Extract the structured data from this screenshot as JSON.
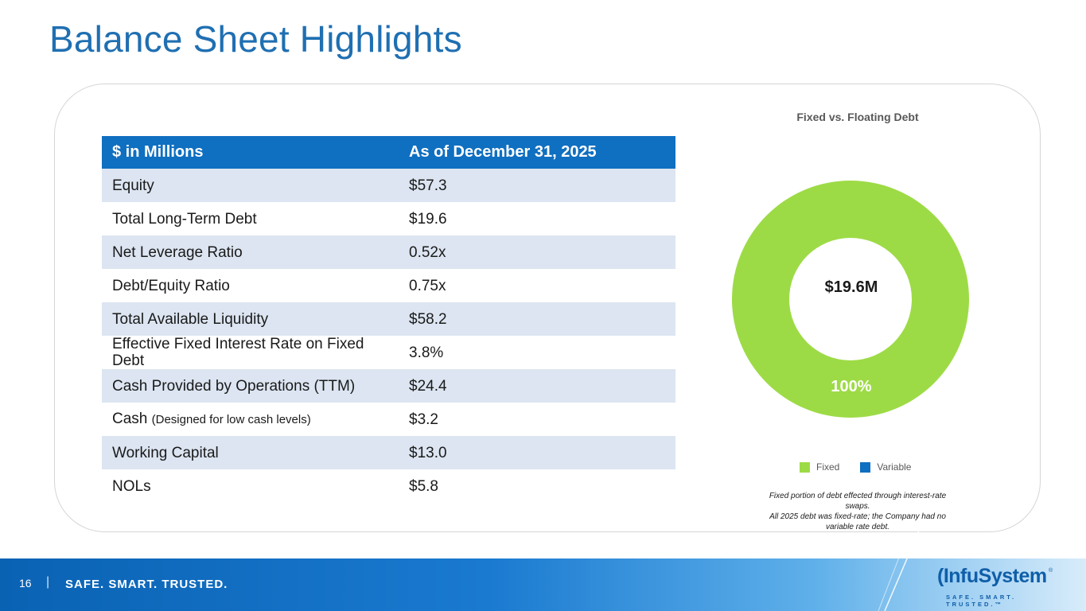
{
  "title": "Balance Sheet Highlights",
  "table": {
    "header": [
      "$ in Millions",
      "As of December 31, 2025"
    ],
    "rows": [
      {
        "label": "Equity",
        "note": "",
        "value": "$57.3"
      },
      {
        "label": "Total Long-Term Debt",
        "note": "",
        "value": "$19.6"
      },
      {
        "label": "Net Leverage Ratio",
        "note": "",
        "value": "0.52x"
      },
      {
        "label": "Debt/Equity Ratio",
        "note": "",
        "value": "0.75x"
      },
      {
        "label": "Total Available Liquidity",
        "note": "",
        "value": "$58.2"
      },
      {
        "label": "Effective Fixed Interest Rate on Fixed Debt",
        "note": "",
        "value": "3.8%"
      },
      {
        "label": "Cash Provided by Operations (TTM)",
        "note": "",
        "value": "$24.4"
      },
      {
        "label": "Cash",
        "note": "(Designed for low cash levels)",
        "value": "$3.2"
      },
      {
        "label": "Working Capital",
        "note": "",
        "value": "$13.0"
      },
      {
        "label": "NOLs",
        "note": "",
        "value": "$5.8"
      }
    ]
  },
  "chart_data": {
    "type": "pie",
    "variant": "donut",
    "title": "Fixed vs. Floating Debt",
    "center_label": "$19.6M",
    "categories": [
      "Fixed",
      "Variable"
    ],
    "values": [
      100,
      0
    ],
    "data_labels": [
      "100%",
      ""
    ],
    "colors": [
      "#9ddb46",
      "#0f6fc0"
    ],
    "legend": "bottom"
  },
  "notes": [
    "Fixed portion of debt effected through interest-rate swaps.",
    "All 2025 debt was fixed-rate; the Company had no variable rate debt."
  ],
  "footer": {
    "page_number": "16",
    "separator": "|",
    "tagline": "SAFE. SMART. TRUSTED."
  },
  "logo": {
    "name_prefix": "(",
    "name": "InfuSystem",
    "tm": "®",
    "tagline": "SAFE. SMART. TRUSTED.™"
  }
}
